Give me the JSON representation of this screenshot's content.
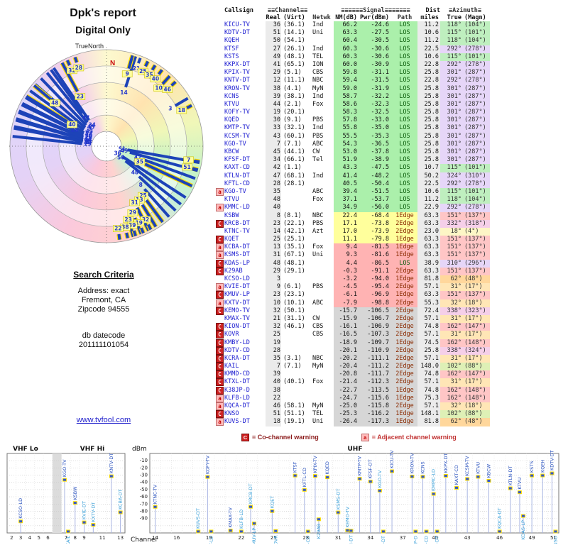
{
  "title": {
    "line1": "Dpk's report",
    "line2": "Digital Only"
  },
  "radar": {
    "north_label": "TrueNorth",
    "n_marker": "N"
  },
  "search": {
    "heading": "Search Criteria",
    "address": "Address: exact",
    "city": "Fremont, CA",
    "zip": "Zipcode 94555",
    "datecode_label": "db datecode",
    "datecode": "201111101054"
  },
  "link_text": "www.tvfool.com",
  "table": {
    "header": {
      "callsign": "Callsign",
      "channel": "≡≡Channel≡≡",
      "signal": "≡≡≡≡≡≡Signal≡≡≡≡≡≡≡",
      "dist": "Dist",
      "azimuth": "≡Azimuth≡",
      "real": "Real",
      "virt": "(Virt)",
      "netwk": "Netwk",
      "nm": "NM(dB)",
      "pwr": "Pwr(dBm)",
      "path": "Path",
      "miles": "miles",
      "true": "True",
      "magn": "(Magn)"
    }
  },
  "legend": {
    "c_symbol": "C",
    "c_text": "= Co-channel warning",
    "a_symbol": "a",
    "a_text": "= Adjacent channel warning"
  },
  "chart_data": {
    "type": "bar+radar+table",
    "ylabel": "dBm",
    "xlabel": "Channel",
    "panels": [
      "VHF Lo",
      "VHF Hi",
      "UHF"
    ],
    "ylim": [
      0,
      -110
    ],
    "yticks": [
      -10,
      -20,
      -30,
      -40,
      -50,
      -60,
      -70,
      -80,
      -90
    ],
    "vhf_ticks": [
      2,
      3,
      4,
      5,
      6,
      7,
      8,
      9,
      11,
      13
    ],
    "uhf_ticks": [
      14,
      16,
      19,
      22,
      25,
      28,
      31,
      34,
      37,
      40,
      43,
      46,
      49,
      51
    ],
    "columns": [
      "warn",
      "callsign",
      "real_ch",
      "virt_ch",
      "network",
      "nm_db",
      "pwr_dbm",
      "path",
      "miles",
      "true_az",
      "magn_az",
      "signal_class",
      "azimuth_color_class"
    ],
    "stations": [
      [
        "",
        "KICU-TV",
        36,
        "(36.1)",
        "Ind",
        66.2,
        -24.6,
        "LOS",
        "11.2",
        118,
        104,
        "g",
        "g"
      ],
      [
        "",
        "KDTV-DT",
        51,
        "(14.1)",
        "Uni",
        63.3,
        -27.5,
        "LOS",
        "10.6",
        115,
        101,
        "g",
        "g"
      ],
      [
        "",
        "KQEH",
        50,
        "(54.1)",
        "",
        60.4,
        -30.5,
        "LOS",
        "11.2",
        118,
        104,
        "g",
        "g"
      ],
      [
        "",
        "KTSF",
        27,
        "(26.1)",
        "Ind",
        60.3,
        -30.6,
        "LOS",
        "22.5",
        292,
        278,
        "g",
        "p"
      ],
      [
        "",
        "KSTS",
        49,
        "(48.1)",
        "TEL",
        60.3,
        -30.6,
        "LOS",
        "10.6",
        115,
        101,
        "g",
        "g"
      ],
      [
        "",
        "KKPX-DT",
        41,
        "(65.1)",
        "ION",
        60.0,
        -30.9,
        "LOS",
        "22.8",
        292,
        278,
        "g",
        "p"
      ],
      [
        "",
        "KPIX-TV",
        29,
        "(5.1)",
        "CBS",
        59.8,
        -31.1,
        "LOS",
        "25.8",
        301,
        287,
        "g",
        "p"
      ],
      [
        "",
        "KNTV-DT",
        12,
        "(11.1)",
        "NBC",
        59.4,
        -31.5,
        "LOS",
        "22.8",
        292,
        278,
        "g",
        "p"
      ],
      [
        "",
        "KRON-TV",
        38,
        "(4.1)",
        "MyN",
        59.0,
        -31.9,
        "LOS",
        "25.8",
        301,
        287,
        "g",
        "p"
      ],
      [
        "",
        "KCNS",
        39,
        "(38.1)",
        "Ind",
        58.7,
        -32.2,
        "LOS",
        "25.8",
        301,
        287,
        "g",
        "p"
      ],
      [
        "",
        "KTVU",
        44,
        "(2.1)",
        "Fox",
        58.6,
        -32.3,
        "LOS",
        "25.8",
        301,
        287,
        "g",
        "p"
      ],
      [
        "",
        "KOFY-TV",
        19,
        "(20.1)",
        "",
        58.3,
        -32.5,
        "LOS",
        "25.8",
        301,
        287,
        "g",
        "p"
      ],
      [
        "",
        "KQED",
        30,
        "(9.1)",
        "PBS",
        57.8,
        -33.0,
        "LOS",
        "25.8",
        301,
        287,
        "g",
        "p"
      ],
      [
        "",
        "KMTP-TV",
        33,
        "(32.1)",
        "Ind",
        55.8,
        -35.0,
        "LOS",
        "25.8",
        301,
        287,
        "g",
        "p"
      ],
      [
        "",
        "KCSM-TV",
        43,
        "(60.1)",
        "PBS",
        55.5,
        -35.3,
        "LOS",
        "25.8",
        301,
        287,
        "g",
        "p"
      ],
      [
        "",
        "KGO-TV",
        7,
        "(7.1)",
        "ABC",
        54.3,
        -36.5,
        "LOS",
        "25.8",
        301,
        287,
        "g",
        "p"
      ],
      [
        "",
        "KBCW",
        45,
        "(44.1)",
        "CW",
        53.0,
        -37.8,
        "LOS",
        "25.8",
        301,
        287,
        "g",
        "p"
      ],
      [
        "",
        "KFSF-DT",
        34,
        "(66.1)",
        "Tel",
        51.9,
        -38.9,
        "LOS",
        "25.8",
        301,
        287,
        "g",
        "p"
      ],
      [
        "",
        "KAXT-CD",
        42,
        "(1.1)",
        "",
        43.3,
        -47.5,
        "LOS",
        "10.7",
        115,
        101,
        "g",
        "g"
      ],
      [
        "",
        "KTLN-DT",
        47,
        "(68.1)",
        "Ind",
        41.4,
        -48.2,
        "LOS",
        "50.2",
        324,
        310,
        "g",
        "p"
      ],
      [
        "",
        "KFTL-CD",
        28,
        "(28.1)",
        "",
        40.5,
        -50.4,
        "LOS",
        "22.5",
        292,
        278,
        "g",
        "p"
      ],
      [
        "a",
        "KGO-TV",
        35,
        "",
        "ABC",
        39.4,
        -51.5,
        "LOS",
        "10.6",
        115,
        101,
        "g",
        "g"
      ],
      [
        "",
        "KTVU",
        48,
        "",
        "Fox",
        37.1,
        -53.7,
        "LOS",
        "11.2",
        118,
        104,
        "g",
        "g"
      ],
      [
        "a",
        "KMMC-LD",
        40,
        "",
        "",
        34.9,
        -56.0,
        "LOS",
        "22.9",
        292,
        278,
        "g",
        "p"
      ],
      [
        "",
        "KSBW",
        8,
        "(8.1)",
        "NBC",
        22.4,
        -68.4,
        "1Edge",
        "63.3",
        151,
        137,
        "y",
        "r"
      ],
      [
        "C",
        "KRCB-DT",
        23,
        "(22.1)",
        "PBS",
        17.1,
        -73.8,
        "2Edge",
        "63.3",
        332,
        318,
        "y",
        "m"
      ],
      [
        "",
        "KTNC-TV",
        14,
        "(42.1)",
        "Azt",
        17.0,
        -73.9,
        "2Edge",
        "23.0",
        18,
        4,
        "y",
        "y"
      ],
      [
        "C",
        "KQET",
        25,
        "(25.1)",
        "",
        11.1,
        -79.8,
        "1Edge",
        "63.3",
        151,
        137,
        "y",
        "r"
      ],
      [
        "a",
        "KCBA-DT",
        13,
        "(35.1)",
        "Fox",
        9.4,
        -81.5,
        "1Edge",
        "63.3",
        151,
        137,
        "r",
        "r"
      ],
      [
        "a",
        "KSMS-DT",
        31,
        "(67.1)",
        "Uni",
        9.3,
        -81.6,
        "1Edge",
        "63.3",
        151,
        137,
        "r",
        "r"
      ],
      [
        "C",
        "KDAS-LP",
        48,
        "(48.1)",
        "",
        4.4,
        -86.5,
        "LOS",
        "38.9",
        310,
        296,
        "r",
        "p"
      ],
      [
        "C",
        "K29AB",
        29,
        "(29.1)",
        "",
        -0.3,
        -91.1,
        "2Edge",
        "63.3",
        151,
        137,
        "r",
        "r"
      ],
      [
        "",
        "KCSO-LD",
        3,
        "",
        "",
        -3.2,
        -94.0,
        "1Edge",
        "81.8",
        62,
        48,
        "r",
        "oo"
      ],
      [
        "a",
        "KVIE-DT",
        9,
        "(6.1)",
        "PBS",
        -4.5,
        -95.4,
        "2Edge",
        "57.1",
        31,
        17,
        "r",
        "o"
      ],
      [
        "C",
        "KMUV-LP",
        23,
        "(23.1)",
        "",
        -6.1,
        -96.9,
        "1Edge",
        "63.3",
        151,
        137,
        "r",
        "r"
      ],
      [
        "a",
        "KXTV-DT",
        10,
        "(10.1)",
        "ABC",
        -7.9,
        -98.8,
        "2Edge",
        "55.3",
        32,
        18,
        "r",
        "o"
      ],
      [
        "C",
        "KEMO-TV",
        32,
        "(50.1)",
        "",
        -15.7,
        -106.5,
        "2Edge",
        "72.4",
        338,
        323,
        "x",
        "m"
      ],
      [
        "",
        "KMAX-TV",
        21,
        "(31.1)",
        "CW",
        -15.9,
        -106.7,
        "2Edge",
        "57.1",
        31,
        17,
        "x",
        "o"
      ],
      [
        "C",
        "KION-DT",
        32,
        "(46.1)",
        "CBS",
        -16.1,
        -106.9,
        "2Edge",
        "74.8",
        162,
        147,
        "x",
        "r"
      ],
      [
        "C",
        "KOVR",
        25,
        "",
        "CBS",
        -16.5,
        -107.3,
        "2Edge",
        "57.1",
        31,
        17,
        "x",
        "o"
      ],
      [
        "C",
        "KMBY-LD",
        19,
        "",
        "",
        -18.9,
        -109.7,
        "1Edge",
        "74.5",
        162,
        148,
        "x",
        "r"
      ],
      [
        "C",
        "KDTV-CD",
        28,
        "",
        "",
        -20.1,
        -110.9,
        "2Edge",
        "25.8",
        338,
        324,
        "x",
        "m"
      ],
      [
        "C",
        "KCRA-DT",
        35,
        "(3.1)",
        "NBC",
        -20.2,
        -111.1,
        "2Edge",
        "57.1",
        31,
        17,
        "x",
        "o"
      ],
      [
        "C",
        "KAIL",
        7,
        "(7.1)",
        "MyN",
        -20.4,
        -111.2,
        "2Edge",
        "148.0",
        102,
        88,
        "x",
        "yg"
      ],
      [
        "C",
        "KMMD-CD",
        39,
        "",
        "",
        -20.8,
        -111.7,
        "2Edge",
        "74.8",
        162,
        147,
        "x",
        "r"
      ],
      [
        "C",
        "KTXL-DT",
        40,
        "(40.1)",
        "Fox",
        -21.4,
        -112.3,
        "2Edge",
        "57.1",
        31,
        17,
        "x",
        "o"
      ],
      [
        "C",
        "K38JP-D",
        38,
        "",
        "",
        -22.7,
        -113.5,
        "1Edge",
        "74.8",
        162,
        148,
        "x",
        "r"
      ],
      [
        "a",
        "KLFB-LD",
        22,
        "",
        "",
        -24.7,
        -115.6,
        "1Edge",
        "75.3",
        162,
        148,
        "x",
        "r"
      ],
      [
        "a",
        "KQCA-DT",
        46,
        "(58.1)",
        "MyN",
        -25.0,
        -115.8,
        "2Edge",
        "57.1",
        32,
        18,
        "x",
        "o"
      ],
      [
        "C",
        "KNSO",
        51,
        "(51.1)",
        "TEL",
        -25.3,
        -116.2,
        "1Edge",
        "148.1",
        102,
        88,
        "x",
        "yg"
      ],
      [
        "a",
        "KUVS-DT",
        18,
        "(19.1)",
        "Uni",
        -26.4,
        -117.3,
        "1Edge",
        "81.8",
        62,
        48,
        "x",
        "oo"
      ]
    ]
  }
}
